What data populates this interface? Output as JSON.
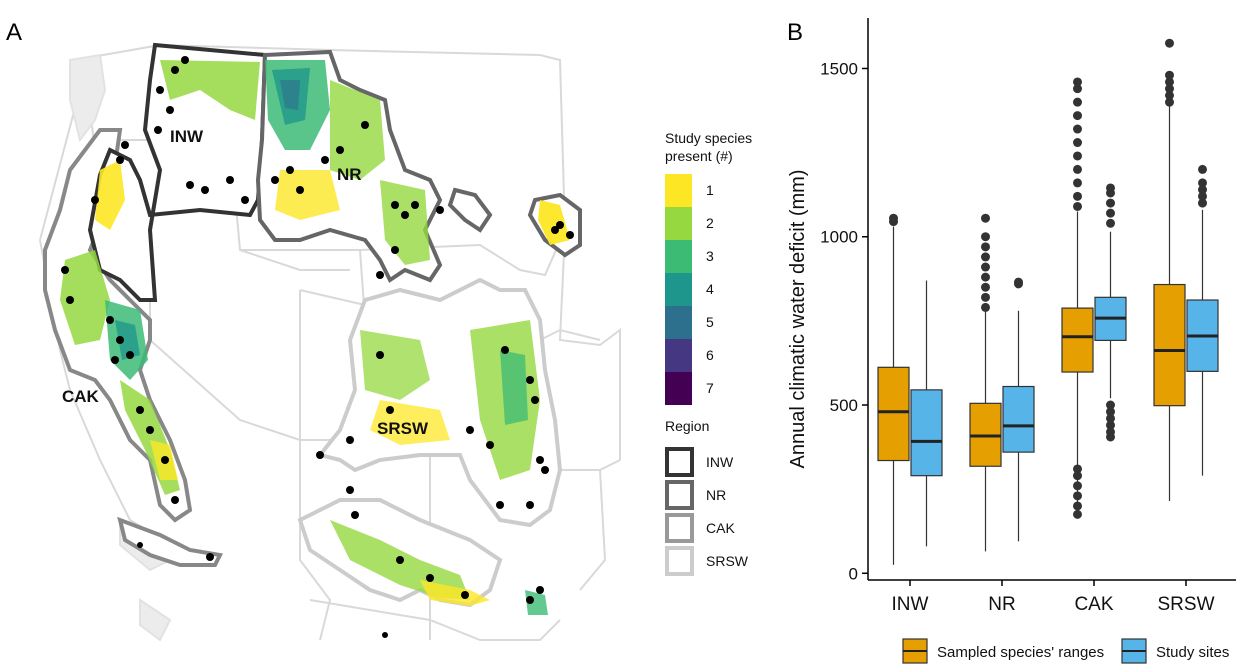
{
  "figure": {
    "panel_a_letter": "A",
    "panel_b_letter": "B"
  },
  "map": {
    "region_labels": [
      "INW",
      "NR",
      "CAK",
      "SRSW"
    ],
    "legend_species": {
      "title_line1": "Study species",
      "title_line2": "present (#)",
      "items": [
        {
          "label": "1",
          "color": "#FDE725"
        },
        {
          "label": "2",
          "color": "#95D840"
        },
        {
          "label": "3",
          "color": "#3CBB75"
        },
        {
          "label": "4",
          "color": "#1F968B"
        },
        {
          "label": "5",
          "color": "#2D708E"
        },
        {
          "label": "6",
          "color": "#453781"
        },
        {
          "label": "7",
          "color": "#440154"
        }
      ]
    },
    "legend_region": {
      "title": "Region",
      "items": [
        {
          "label": "INW",
          "color": "#333333"
        },
        {
          "label": "NR",
          "color": "#666666"
        },
        {
          "label": "CAK",
          "color": "#999999"
        },
        {
          "label": "SRSW",
          "color": "#CCCCCC"
        }
      ]
    }
  },
  "chart_data": {
    "type": "boxplot",
    "xlabel": "",
    "ylabel": "Annual climatic water deficit (mm)",
    "ylim": [
      -20,
      1650
    ],
    "yticks": [
      0,
      500,
      1000,
      1500
    ],
    "categories": [
      "INW",
      "NR",
      "CAK",
      "SRSW"
    ],
    "grid": false,
    "legend_position": "bottom",
    "series": [
      {
        "name": "Sampled species' ranges",
        "color": "#E69F00",
        "boxes": [
          {
            "min": 25,
            "q1": 335,
            "median": 480,
            "q3": 612,
            "max": 1030,
            "outliers": [
              1045,
              1055
            ]
          },
          {
            "min": 65,
            "q1": 318,
            "median": 408,
            "q3": 505,
            "max": 780,
            "outliers": [
              790,
              820,
              850,
              880,
              910,
              940,
              970,
              1000,
              1055
            ]
          },
          {
            "min": 175,
            "q1": 598,
            "median": 703,
            "q3": 788,
            "max": 1075,
            "outliers": [
              175,
              200,
              230,
              260,
              290,
              310,
              1090,
              1120,
              1160,
              1200,
              1240,
              1280,
              1320,
              1360,
              1400,
              1440,
              1460
            ]
          },
          {
            "min": 215,
            "q1": 498,
            "median": 662,
            "q3": 858,
            "max": 1390,
            "outliers": [
              1400,
              1420,
              1440,
              1460,
              1480,
              1575
            ]
          }
        ]
      },
      {
        "name": "Study sites",
        "color": "#56B4E9",
        "boxes": [
          {
            "min": 80,
            "q1": 290,
            "median": 392,
            "q3": 545,
            "max": 870,
            "outliers": []
          },
          {
            "min": 95,
            "q1": 360,
            "median": 438,
            "q3": 555,
            "max": 780,
            "outliers": [
              860,
              865
            ]
          },
          {
            "min": 520,
            "q1": 692,
            "median": 758,
            "q3": 820,
            "max": 1015,
            "outliers": [
              405,
              420,
              440,
              460,
              480,
              500,
              1040,
              1070,
              1100,
              1130,
              1145
            ]
          },
          {
            "min": 290,
            "q1": 600,
            "median": 705,
            "q3": 812,
            "max": 1080,
            "outliers": [
              1100,
              1120,
              1140,
              1160,
              1200
            ]
          }
        ]
      }
    ]
  }
}
